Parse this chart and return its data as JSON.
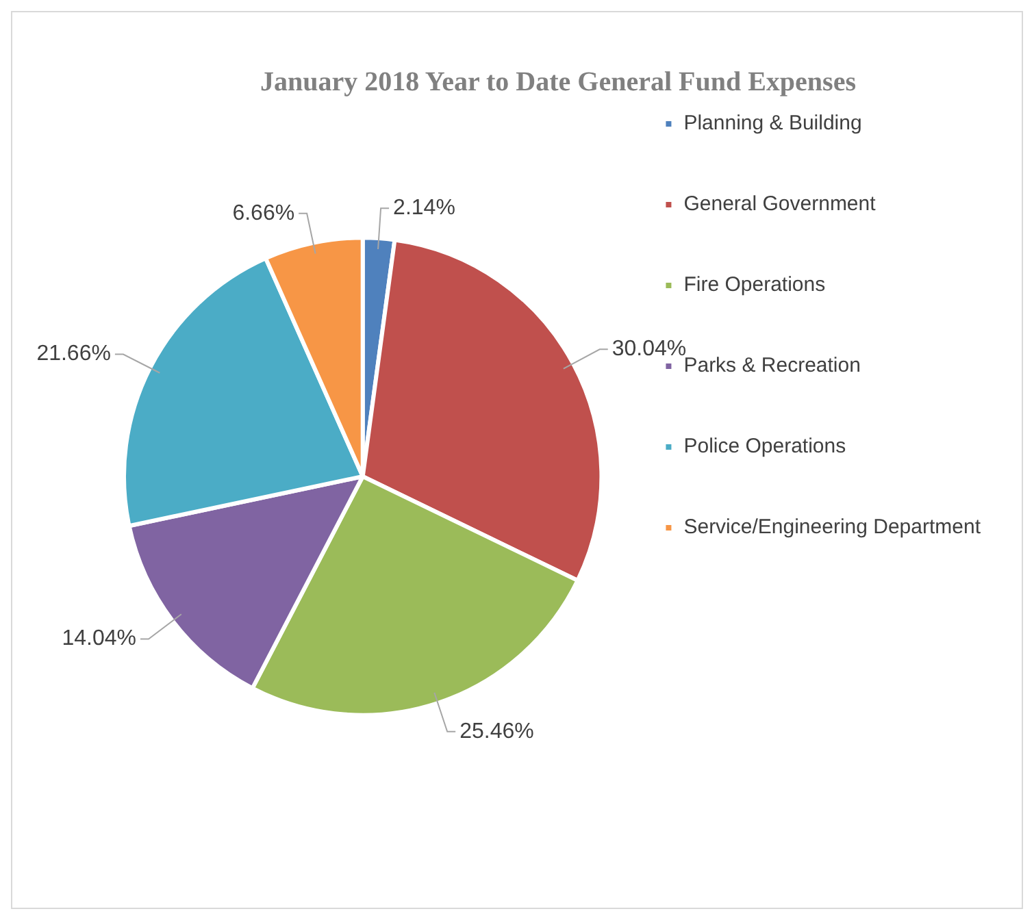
{
  "chart_data": {
    "type": "pie",
    "title": "January 2018 Year to Date General Fund Expenses",
    "categories": [
      "Planning & Building",
      "General Government",
      "Fire Operations",
      "Parks & Recreation",
      "Police Operations",
      "Service/Engineering Department"
    ],
    "values": [
      2.14,
      30.04,
      25.46,
      14.04,
      21.66,
      6.66
    ],
    "colors": [
      "#4f81bd",
      "#c0504d",
      "#9bbb59",
      "#8064a2",
      "#4bacc6",
      "#f79646"
    ],
    "value_labels": [
      "2.14%",
      "30.04%",
      "25.46%",
      "14.04%",
      "21.66%",
      "6.66%"
    ],
    "legend": "right"
  }
}
